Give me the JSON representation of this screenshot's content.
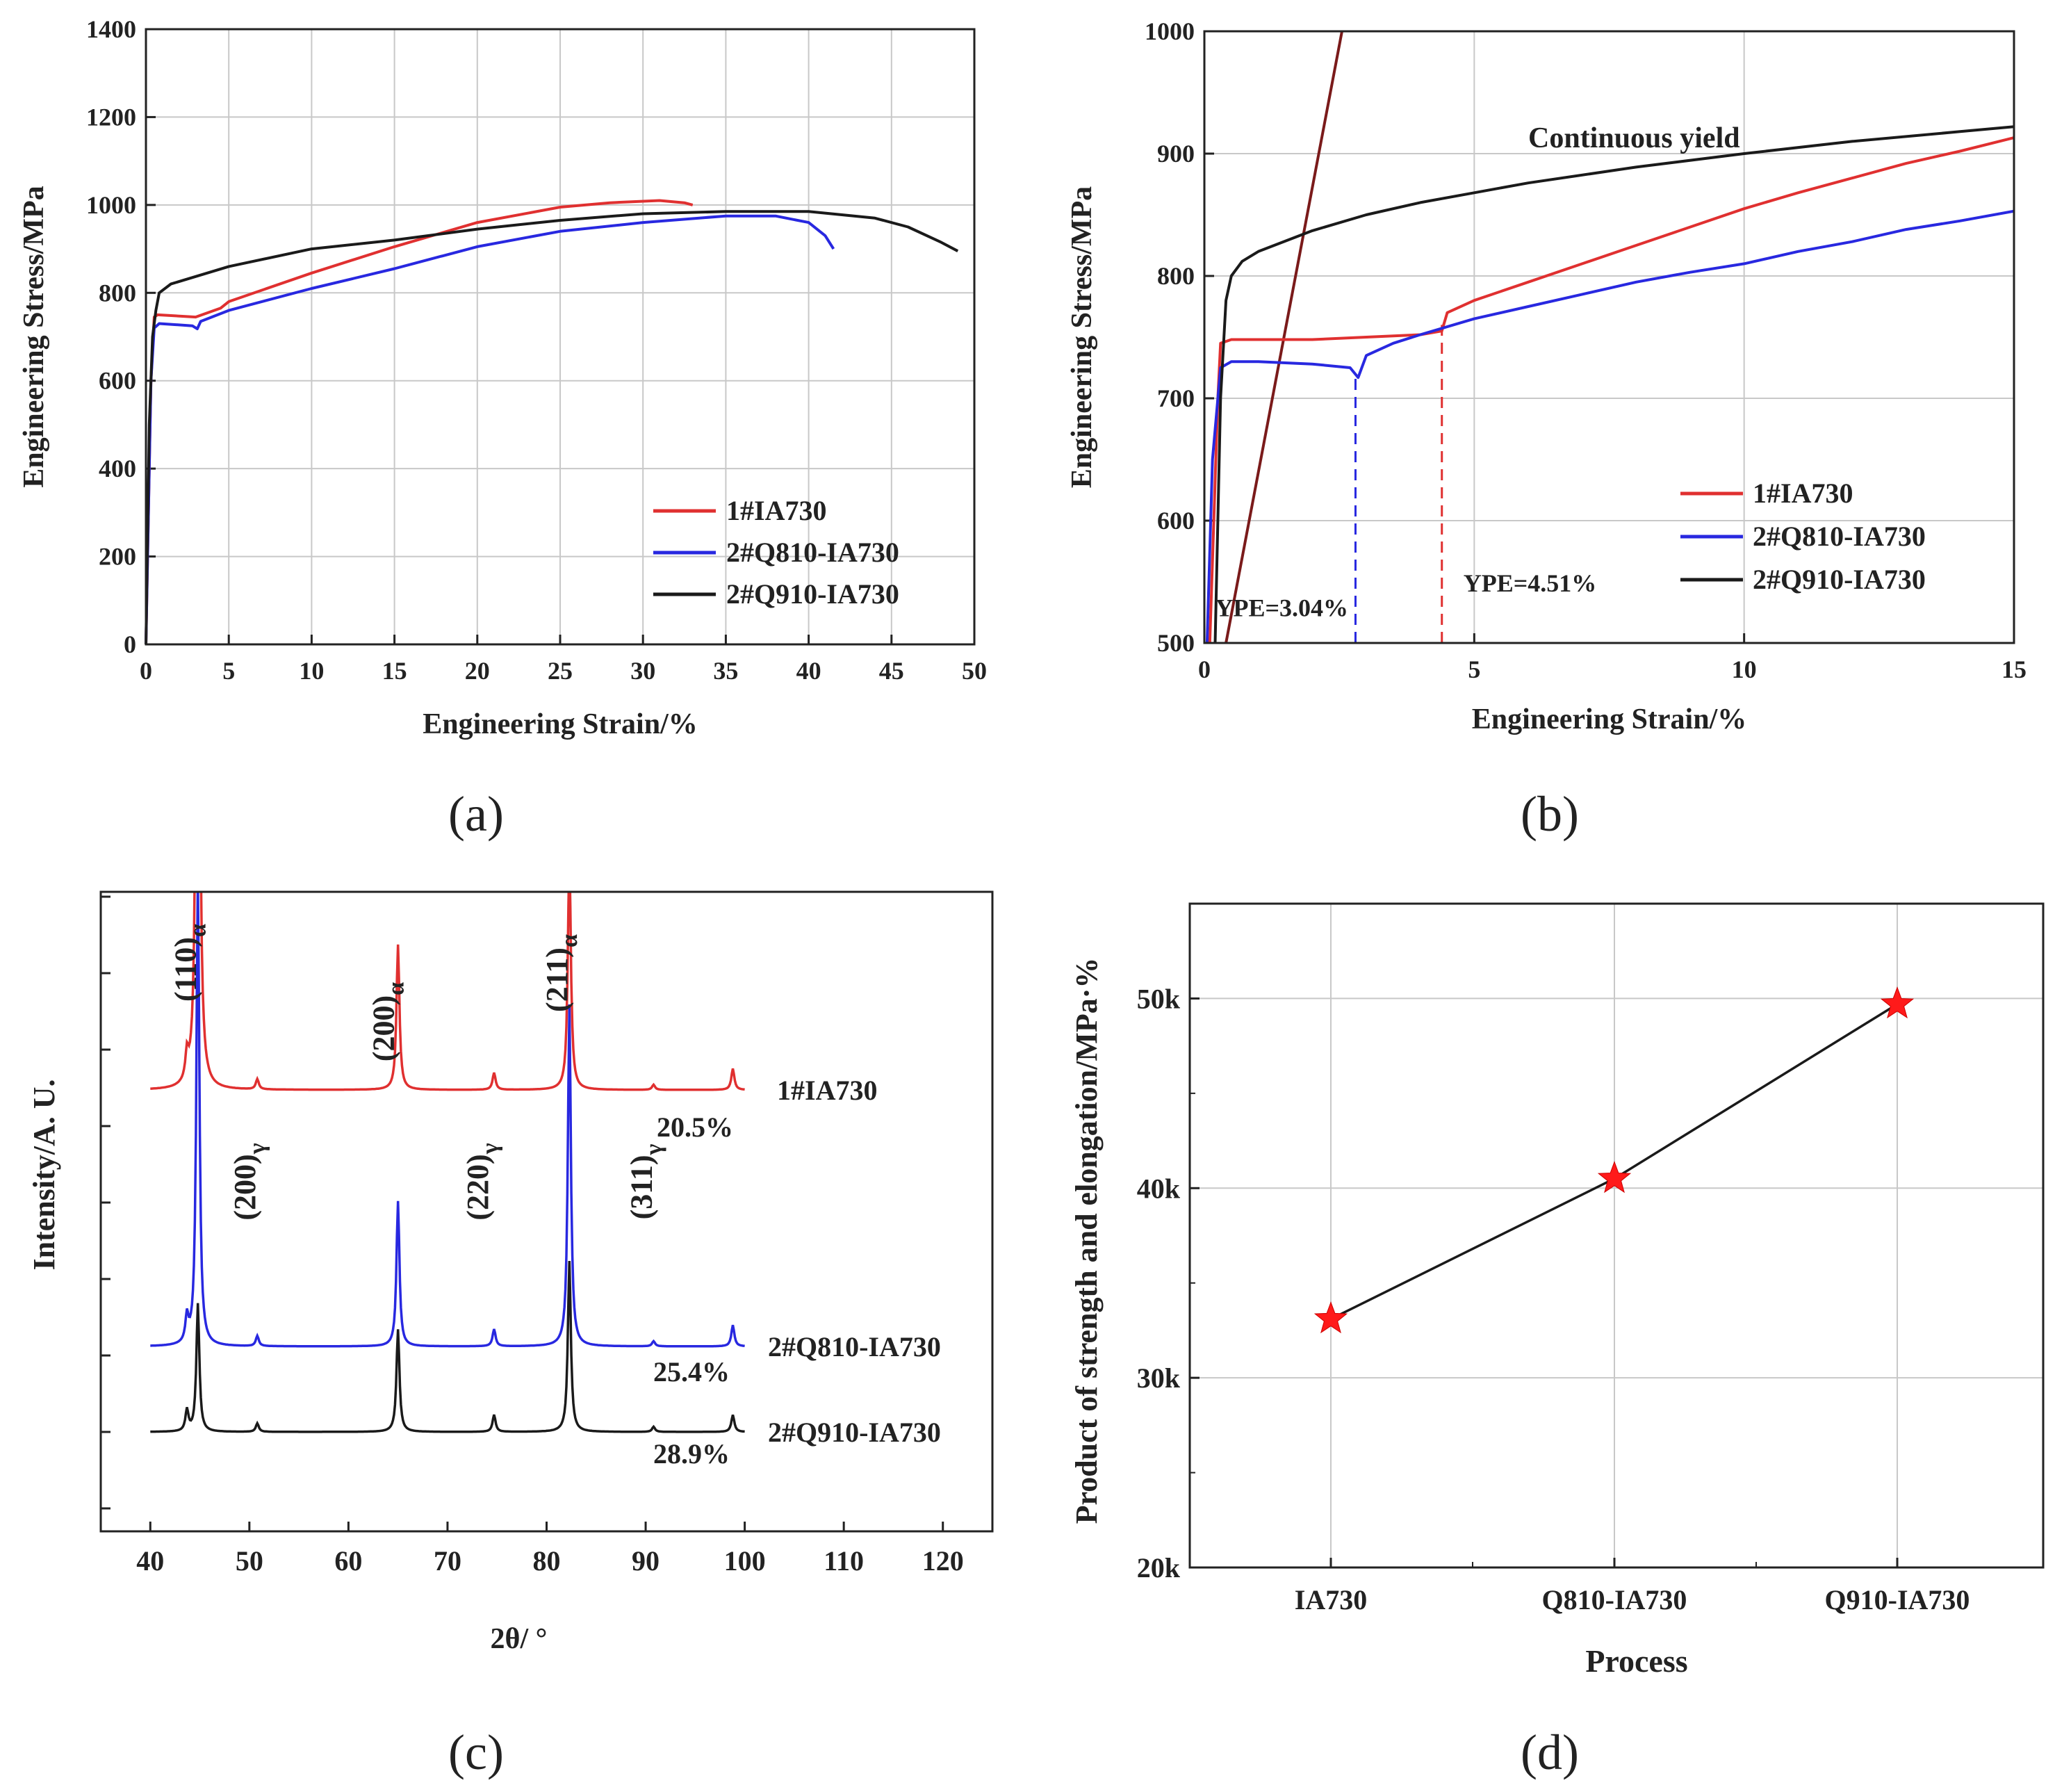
{
  "colors": {
    "red": "#e03030",
    "blue": "#2828e0",
    "black": "#1a1a1a",
    "brown": "#7a1a1a",
    "grid": "#c8c8c8",
    "axis": "#222222",
    "marker": "#ff1a1a"
  },
  "panels": {
    "a": {
      "label": "(a)"
    },
    "b": {
      "label": "(b)"
    },
    "c": {
      "label": "(c)"
    },
    "d": {
      "label": "(d)"
    }
  },
  "chart_data": [
    {
      "id": "a",
      "type": "line",
      "xlabel": "Engineering Strain/%",
      "ylabel": "Engineering Stress/MPa",
      "xlim": [
        0,
        50
      ],
      "ylim": [
        0,
        1400
      ],
      "xticks": [
        0,
        5,
        10,
        15,
        20,
        25,
        30,
        35,
        40,
        45,
        50
      ],
      "yticks": [
        0,
        200,
        400,
        600,
        800,
        1000,
        1200,
        1400
      ],
      "grid": true,
      "legend_position": "lower-right",
      "series": [
        {
          "name": "1#IA730",
          "color": "red",
          "x": [
            0,
            0.3,
            0.5,
            0.7,
            3,
            4.5,
            5,
            10,
            15,
            20,
            25,
            28,
            31,
            32.5,
            33
          ],
          "y": [
            0,
            600,
            745,
            750,
            745,
            765,
            780,
            845,
            905,
            960,
            995,
            1005,
            1010,
            1005,
            1000
          ]
        },
        {
          "name": "2#Q810-IA730",
          "color": "blue",
          "x": [
            0,
            0.3,
            0.5,
            0.8,
            2.8,
            3.1,
            3.3,
            5,
            10,
            15,
            20,
            25,
            30,
            35,
            38,
            40,
            41,
            41.5
          ],
          "y": [
            0,
            600,
            720,
            730,
            725,
            718,
            735,
            760,
            810,
            855,
            905,
            940,
            960,
            975,
            975,
            960,
            930,
            900
          ]
        },
        {
          "name": "2#Q910-IA730",
          "color": "black",
          "x": [
            0,
            0.2,
            0.4,
            0.6,
            0.8,
            1.5,
            5,
            10,
            15,
            20,
            25,
            30,
            35,
            40,
            44,
            46,
            48,
            49
          ],
          "y": [
            0,
            500,
            700,
            760,
            800,
            820,
            860,
            900,
            920,
            945,
            965,
            980,
            985,
            985,
            970,
            950,
            915,
            895
          ]
        }
      ]
    },
    {
      "id": "b",
      "type": "line",
      "xlabel": "Engineering Strain/%",
      "ylabel": "Engineering Stress/MPa",
      "xlim": [
        0,
        15
      ],
      "ylim": [
        500,
        1000
      ],
      "xticks": [
        0,
        5,
        10,
        15
      ],
      "yticks": [
        500,
        600,
        700,
        800,
        900,
        1000
      ],
      "grid": true,
      "legend_position": "lower-right",
      "annotations": [
        {
          "text": "Continuous yield",
          "x": 6,
          "y": 905,
          "color": "black"
        },
        {
          "text": "YPE=3.04%",
          "x": 0.2,
          "y": 522,
          "color": "blue"
        },
        {
          "text": "YPE=4.51%",
          "x": 4.8,
          "y": 542,
          "color": "red"
        }
      ],
      "markers": [
        {
          "name": "YPE 2#Q810-IA730",
          "x": 2.8,
          "y_from": 500,
          "y_to": 718,
          "color": "blue"
        },
        {
          "name": "YPE 1#IA730",
          "x": 4.4,
          "y_from": 500,
          "y_to": 760,
          "color": "red"
        }
      ],
      "elastic_line": {
        "x": [
          0.4,
          2.55
        ],
        "y": [
          500,
          1000
        ],
        "color": "brown"
      },
      "series": [
        {
          "name": "1#IA730",
          "color": "red",
          "x": [
            0.1,
            0.25,
            0.3,
            0.5,
            1,
            2,
            3,
            4,
            4.4,
            4.5,
            5,
            6,
            7,
            8,
            9,
            10,
            11,
            12,
            13,
            14,
            15
          ],
          "y": [
            500,
            700,
            745,
            748,
            748,
            748,
            750,
            752,
            755,
            770,
            780,
            795,
            810,
            825,
            840,
            855,
            868,
            880,
            892,
            902,
            913
          ]
        },
        {
          "name": "2#Q810-IA730",
          "color": "blue",
          "x": [
            0.05,
            0.15,
            0.3,
            0.5,
            1,
            2,
            2.7,
            2.85,
            3,
            3.5,
            4,
            5,
            6,
            7,
            8,
            9,
            10,
            11,
            12,
            13,
            14,
            15
          ],
          "y": [
            500,
            650,
            725,
            730,
            730,
            728,
            725,
            717,
            735,
            745,
            752,
            765,
            775,
            785,
            795,
            803,
            810,
            820,
            828,
            838,
            845,
            853
          ]
        },
        {
          "name": "2#Q910-IA730",
          "color": "black",
          "x": [
            0.2,
            0.3,
            0.4,
            0.5,
            0.7,
            1,
            2,
            3,
            4,
            5,
            6,
            8,
            10,
            12,
            14,
            15
          ],
          "y": [
            500,
            700,
            780,
            800,
            812,
            820,
            837,
            850,
            860,
            868,
            876,
            889,
            900,
            910,
            918,
            922
          ]
        }
      ]
    },
    {
      "id": "c",
      "type": "line",
      "xlabel": "2θ/ °",
      "ylabel": "Intensity/A. U.",
      "xlim": [
        35,
        125
      ],
      "xticks": [
        40,
        50,
        60,
        70,
        80,
        90,
        100,
        110,
        120
      ],
      "grid": false,
      "peak_labels": [
        {
          "text": "(110)",
          "sub": "α",
          "x": 45
        },
        {
          "text": "(200)",
          "sub": "γ",
          "x": 51
        },
        {
          "text": "(200)",
          "sub": "α",
          "x": 65
        },
        {
          "text": "(220)",
          "sub": "γ",
          "x": 74.5
        },
        {
          "text": "(211)",
          "sub": "α",
          "x": 82.5
        },
        {
          "text": "(311)",
          "sub": "γ",
          "x": 91
        }
      ],
      "series": [
        {
          "name": "1#IA730",
          "color": "red",
          "offset": 0.5,
          "fraction": "20.5%",
          "peaks": [
            [
              43.7,
              0.03
            ],
            [
              44.8,
              1.0
            ],
            [
              50.8,
              0.012
            ],
            [
              65.0,
              0.17
            ],
            [
              74.7,
              0.02
            ],
            [
              82.3,
              0.28
            ],
            [
              90.8,
              0.006
            ],
            [
              98.8,
              0.025
            ]
          ]
        },
        {
          "name": "2#Q810-IA730",
          "color": "blue",
          "offset": 0.2,
          "fraction": "25.4%",
          "peaks": [
            [
              43.7,
              0.03
            ],
            [
              44.8,
              0.55
            ],
            [
              50.8,
              0.012
            ],
            [
              65.0,
              0.17
            ],
            [
              74.7,
              0.02
            ],
            [
              82.3,
              0.4
            ],
            [
              90.8,
              0.006
            ],
            [
              98.8,
              0.025
            ]
          ]
        },
        {
          "name": "2#Q910-IA730",
          "color": "black",
          "offset": 0.1,
          "fraction": "28.9%",
          "peaks": [
            [
              43.7,
              0.025
            ],
            [
              44.8,
              0.15
            ],
            [
              50.8,
              0.01
            ],
            [
              65.0,
              0.12
            ],
            [
              74.7,
              0.02
            ],
            [
              82.3,
              0.2
            ],
            [
              90.8,
              0.006
            ],
            [
              98.8,
              0.02
            ]
          ]
        }
      ]
    },
    {
      "id": "d",
      "type": "line",
      "xlabel": "Process",
      "ylabel": "Product of strength and elongation/MPa·%",
      "categories": [
        "IA730",
        "Q810-IA730",
        "Q910-IA730"
      ],
      "values": [
        33100,
        40500,
        49700
      ],
      "ylim": [
        20000,
        55000
      ],
      "yticks": [
        20000,
        30000,
        40000,
        50000
      ],
      "ytick_labels": [
        "20k",
        "30k",
        "40k",
        "50k"
      ],
      "grid": true,
      "marker": "star"
    }
  ]
}
